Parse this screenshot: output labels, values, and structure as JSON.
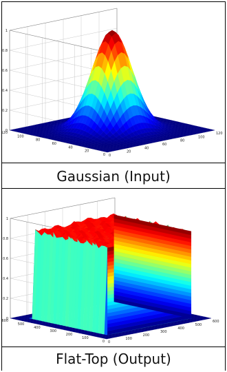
{
  "chart_data": [
    {
      "type": "surface3d",
      "caption": "Gaussian (Input)",
      "x_ticks": [
        "0",
        "20",
        "40",
        "60",
        "80",
        "100",
        "120"
      ],
      "y_ticks": [
        "0",
        "20",
        "40",
        "60",
        "80",
        "100",
        "120"
      ],
      "z_ticks": [
        "0",
        "0.2",
        "0.4",
        "0.6",
        "0.8",
        "1"
      ],
      "xlim": [
        0,
        120
      ],
      "ylim": [
        0,
        120
      ],
      "zlim": [
        0,
        1
      ],
      "surface": {
        "shape": "gaussian",
        "peak": 1,
        "center": [
          60,
          60
        ]
      },
      "colormap": "jet",
      "grid": true
    },
    {
      "type": "surface3d",
      "caption": "Flat-Top (Output)",
      "x_ticks": [
        "0",
        "100",
        "200",
        "300",
        "400",
        "500",
        "600"
      ],
      "y_ticks": [
        "0",
        "100",
        "200",
        "300",
        "400",
        "500",
        "600"
      ],
      "z_ticks": [
        "0",
        "0.2",
        "0.4",
        "0.6",
        "0.8",
        "1"
      ],
      "xlim": [
        0,
        600
      ],
      "ylim": [
        0,
        600
      ],
      "zlim": [
        0,
        1
      ],
      "surface": {
        "shape": "flat-top",
        "plateau": 0.85
      },
      "colormap": "jet",
      "grid": true
    }
  ]
}
